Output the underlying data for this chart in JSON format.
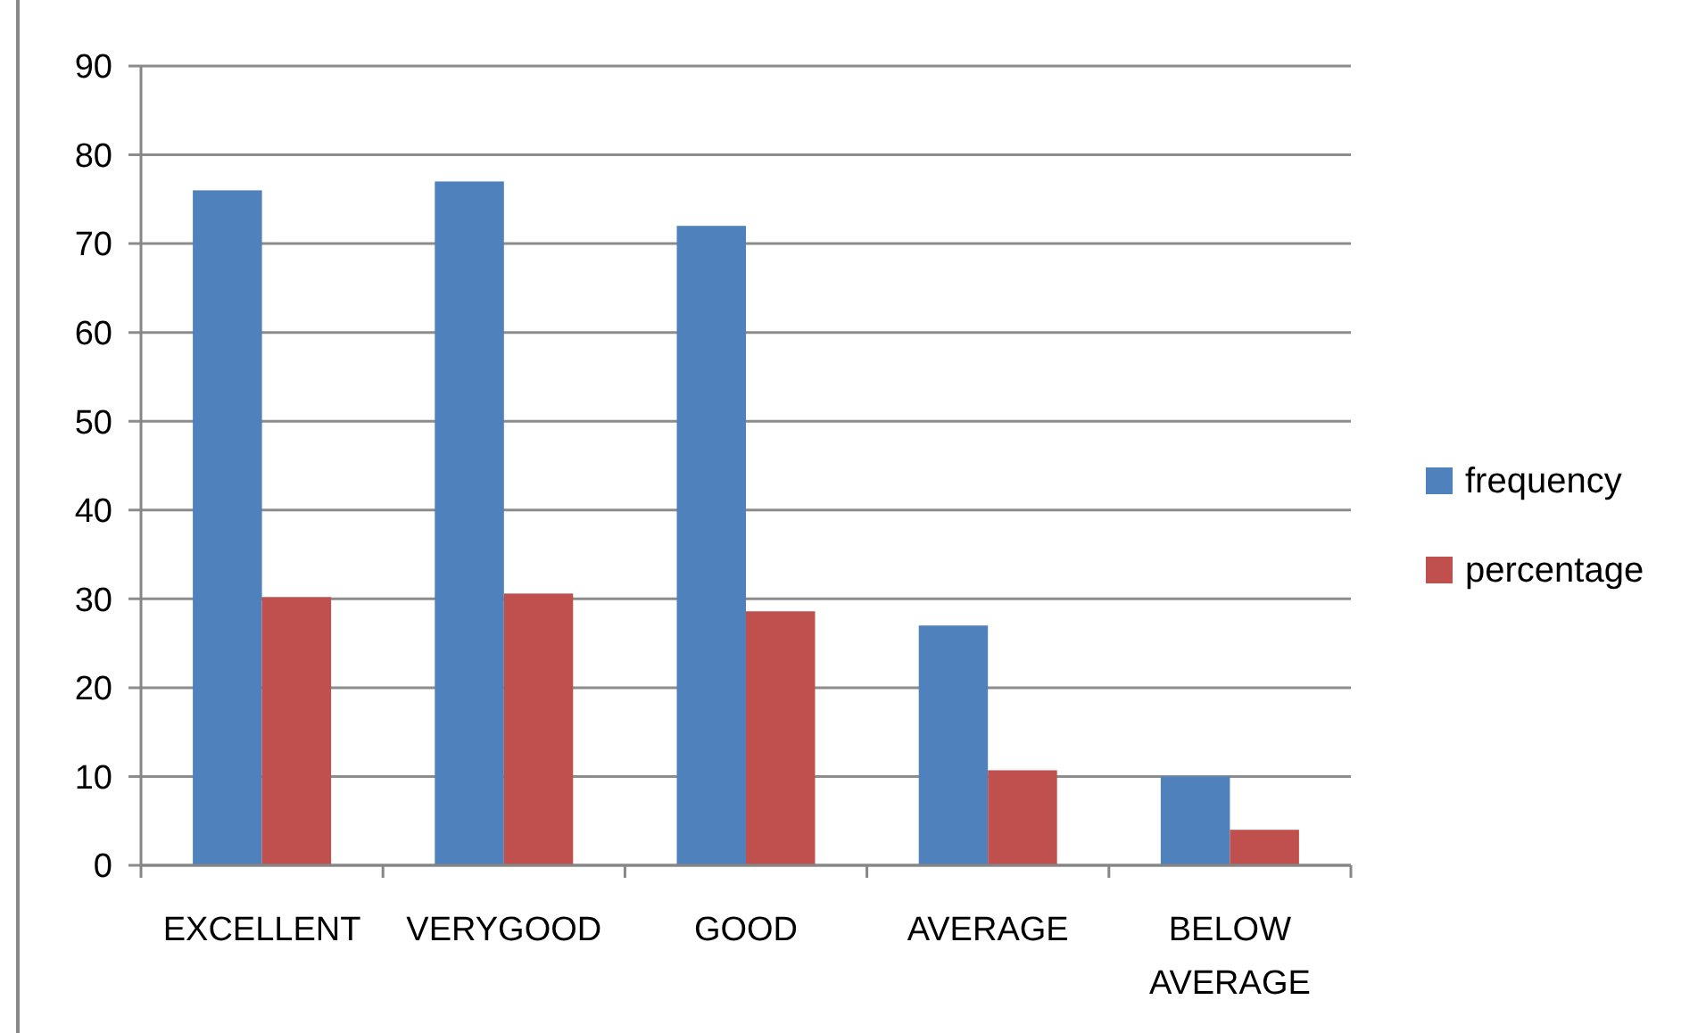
{
  "chart_data": {
    "type": "bar",
    "categories": [
      "EXCELLENT",
      "VERYGOOD",
      "GOOD",
      "AVERAGE",
      "BELOW AVERAGE"
    ],
    "series": [
      {
        "name": "frequency",
        "color": "#4f81bd",
        "values": [
          76,
          77,
          72,
          27,
          10
        ]
      },
      {
        "name": "percentage",
        "color": "#c0504d",
        "values": [
          30.2,
          30.6,
          28.6,
          10.7,
          4.0
        ]
      }
    ],
    "ylim": [
      0,
      90
    ],
    "yticks": [
      0,
      10,
      20,
      30,
      40,
      50,
      60,
      70,
      80,
      90
    ],
    "grid": "y",
    "legend": "right"
  }
}
